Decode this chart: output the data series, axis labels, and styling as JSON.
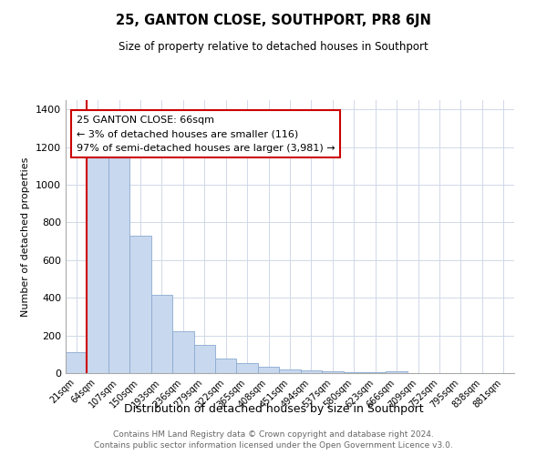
{
  "title": "25, GANTON CLOSE, SOUTHPORT, PR8 6JN",
  "subtitle": "Size of property relative to detached houses in Southport",
  "xlabel": "Distribution of detached houses by size in Southport",
  "ylabel": "Number of detached properties",
  "bar_labels": [
    "21sqm",
    "64sqm",
    "107sqm",
    "150sqm",
    "193sqm",
    "236sqm",
    "279sqm",
    "322sqm",
    "365sqm",
    "408sqm",
    "451sqm",
    "494sqm",
    "537sqm",
    "580sqm",
    "623sqm",
    "666sqm",
    "709sqm",
    "752sqm",
    "795sqm",
    "838sqm",
    "881sqm"
  ],
  "bar_heights": [
    110,
    1155,
    1155,
    730,
    415,
    220,
    148,
    75,
    52,
    35,
    20,
    15,
    12,
    5,
    5,
    12,
    0,
    0,
    0,
    0,
    0
  ],
  "bar_color": "#c8d8ee",
  "bar_edge_color": "#8aaad0",
  "vline_x_label": "64sqm",
  "vline_color": "#cc0000",
  "ylim": [
    0,
    1450
  ],
  "yticks": [
    0,
    200,
    400,
    600,
    800,
    1000,
    1200,
    1400
  ],
  "annotation_title": "25 GANTON CLOSE: 66sqm",
  "annotation_line1": "← 3% of detached houses are smaller (116)",
  "annotation_line2": "97% of semi-detached houses are larger (3,981) →",
  "annotation_box_color": "#ffffff",
  "annotation_box_edge": "#cc0000",
  "footer_line1": "Contains HM Land Registry data © Crown copyright and database right 2024.",
  "footer_line2": "Contains public sector information licensed under the Open Government Licence v3.0.",
  "background_color": "#ffffff",
  "grid_color": "#d0d8e8"
}
